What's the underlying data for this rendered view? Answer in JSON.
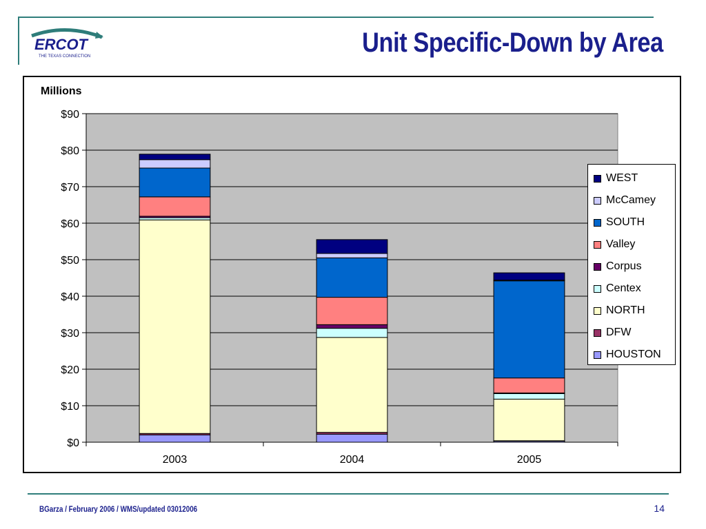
{
  "slide": {
    "title": "Unit Specific-Down by Area",
    "footer": "BGarza / February 2006 / WMS/updated 03012006",
    "page_number": "14",
    "logo_text": "ERCOT",
    "logo_tagline": "THE TEXAS CONNECTION",
    "accent_color": "#2e7d7a",
    "title_color": "#1a1f8c"
  },
  "chart_data": {
    "type": "bar",
    "stacked": true,
    "ylabel": "Millions",
    "categories": [
      "2003",
      "2004",
      "2005"
    ],
    "ylim": [
      0,
      90
    ],
    "yticks": [
      0,
      10,
      20,
      30,
      40,
      50,
      60,
      70,
      80,
      90
    ],
    "ytick_labels": [
      "$0",
      "$10",
      "$20",
      "$30",
      "$40",
      "$50",
      "$60",
      "$70",
      "$80",
      "$90"
    ],
    "grid": true,
    "plot_background": "#c0c0c0",
    "legend_position": "right",
    "series": [
      {
        "name": "HOUSTON",
        "color": "#9999ff",
        "values": [
          2.0,
          2.2,
          0.3
        ]
      },
      {
        "name": "DFW",
        "color": "#993366",
        "values": [
          0.4,
          0.5,
          0.1
        ]
      },
      {
        "name": "NORTH",
        "color": "#ffffcc",
        "values": [
          58.5,
          26.0,
          11.4
        ]
      },
      {
        "name": "Centex",
        "color": "#ccffff",
        "values": [
          0.6,
          2.5,
          1.5
        ]
      },
      {
        "name": "Corpus",
        "color": "#660066",
        "values": [
          0.4,
          1.0,
          0.2
        ]
      },
      {
        "name": "Valley",
        "color": "#ff8080",
        "values": [
          5.3,
          7.5,
          4.1
        ]
      },
      {
        "name": "SOUTH",
        "color": "#0066cc",
        "values": [
          7.9,
          10.8,
          26.6
        ]
      },
      {
        "name": "McCamey",
        "color": "#ccccff",
        "values": [
          2.3,
          1.2,
          0.2
        ]
      },
      {
        "name": "WEST",
        "color": "#000080",
        "values": [
          1.5,
          3.8,
          2.0
        ]
      }
    ]
  }
}
